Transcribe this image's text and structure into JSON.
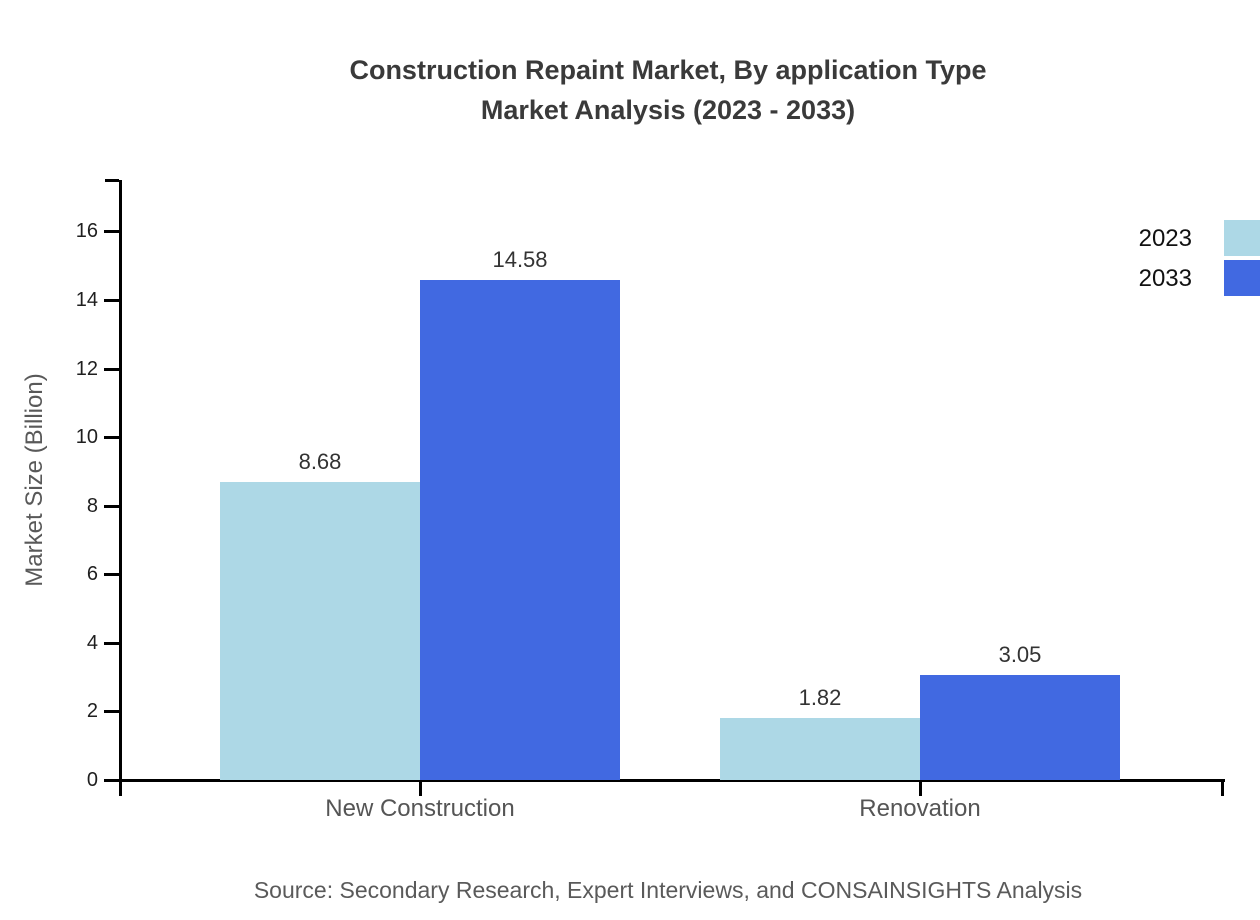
{
  "title": {
    "line1": "Construction Repaint Market, By application Type",
    "line2": "Market Analysis (2023 - 2033)"
  },
  "y_axis": {
    "label": "Market Size (Billion)",
    "ticks": [
      0,
      2,
      4,
      6,
      8,
      10,
      12,
      14,
      16
    ]
  },
  "legend": [
    {
      "label": "2023",
      "color": "#ADD8E6"
    },
    {
      "label": "2033",
      "color": "#4169E1"
    }
  ],
  "source": "Source: Secondary Research, Expert Interviews, and CONSAINSIGHTS Analysis",
  "chart_data": {
    "type": "bar",
    "title": "Construction Repaint Market, By application Type Market Analysis (2023 - 2033)",
    "categories": [
      "New Construction",
      "Renovation"
    ],
    "series": [
      {
        "name": "2023",
        "color": "#ADD8E6",
        "values": [
          8.68,
          1.82
        ]
      },
      {
        "name": "2033",
        "color": "#4169E1",
        "values": [
          14.58,
          3.05
        ]
      }
    ],
    "value_labels": [
      [
        "8.68",
        "1.82"
      ],
      [
        "14.58",
        "3.05"
      ]
    ],
    "xlabel": "",
    "ylabel": "Market Size (Billion)",
    "ylim": [
      0,
      17.5
    ],
    "yticks": [
      0,
      2,
      4,
      6,
      8,
      10,
      12,
      14,
      16
    ],
    "grid": false,
    "legend_position": "top-right"
  }
}
